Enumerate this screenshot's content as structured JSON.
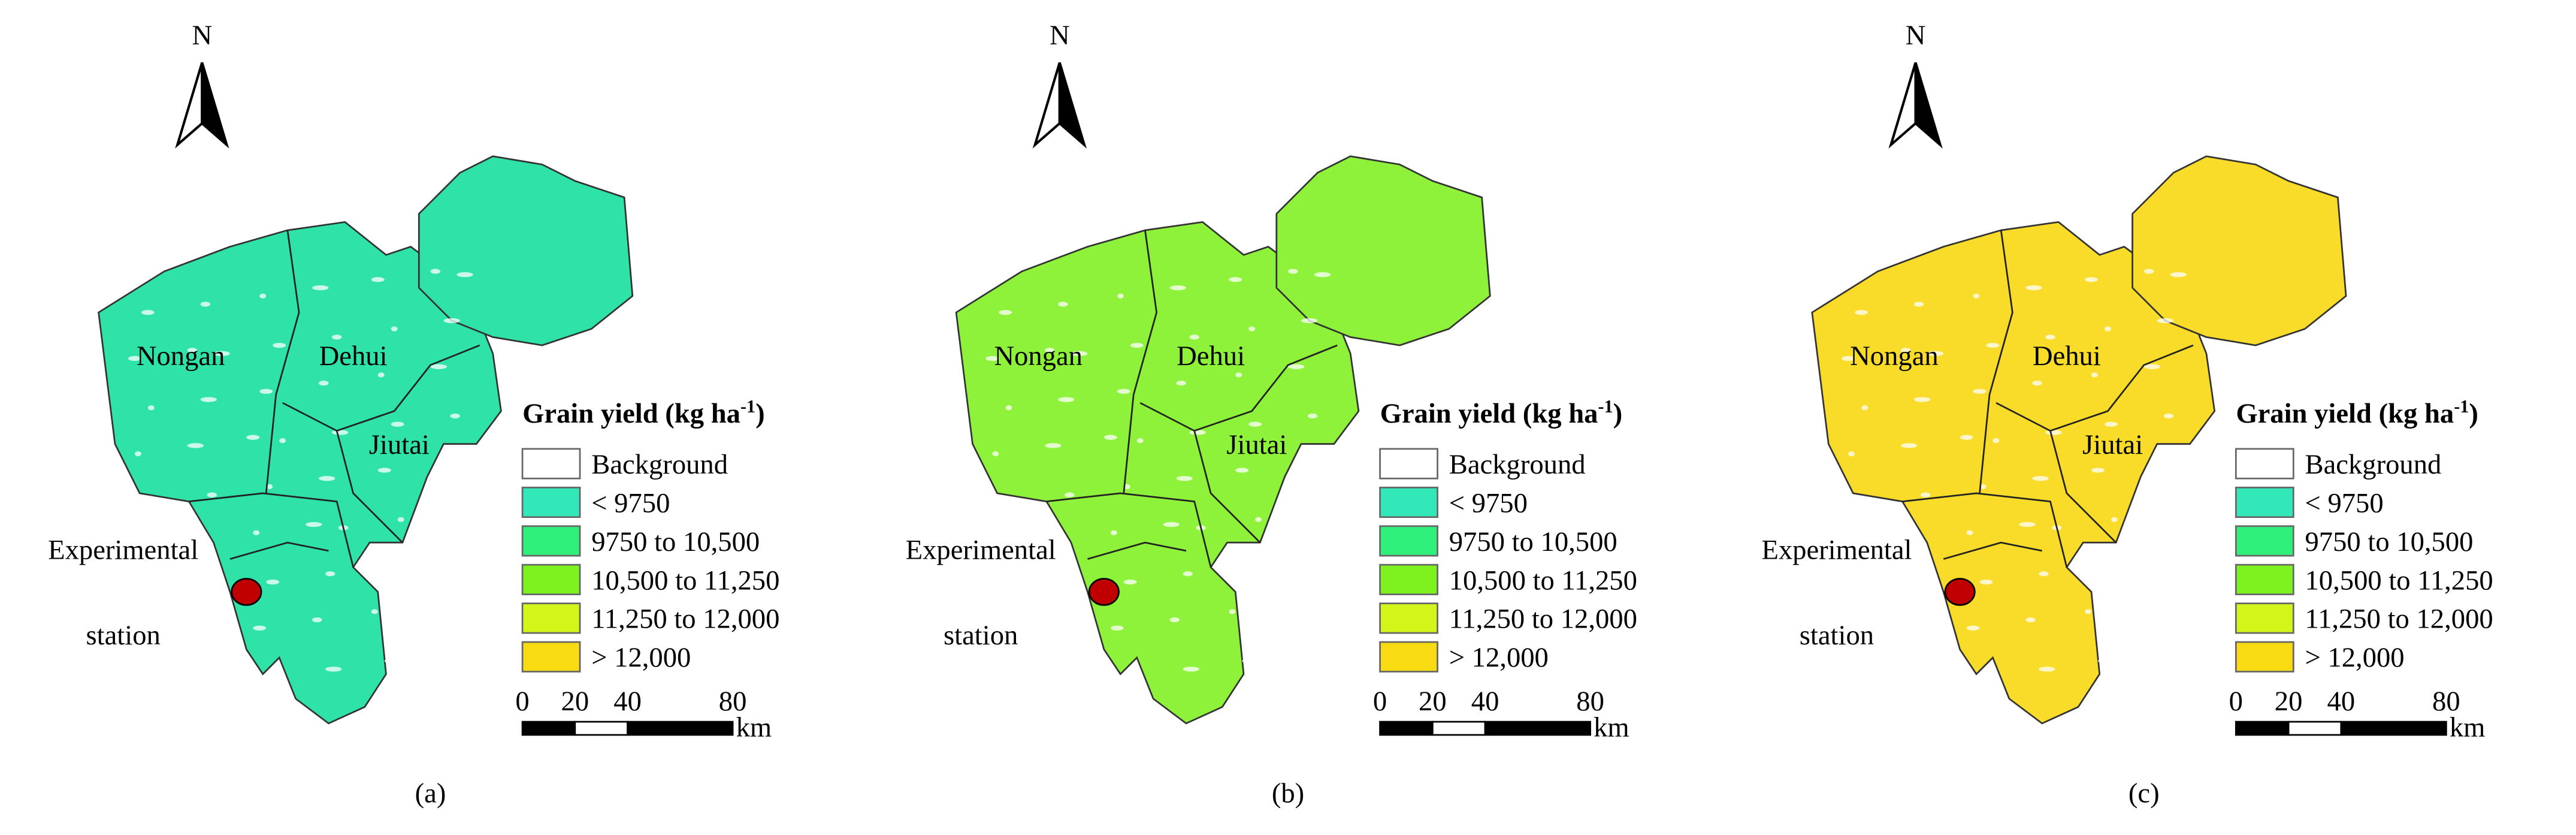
{
  "panels": [
    {
      "label": "(a)",
      "north": "N",
      "map_color": "#2fe3a8",
      "regions": [
        "Nongan",
        "Dehui",
        "Jiutai"
      ],
      "station": [
        "Experimental",
        "station"
      ],
      "legend": {
        "title": [
          "Grain yield (kg ha",
          "-1",
          ")"
        ],
        "items": [
          {
            "label": "Background",
            "color": "#ffffff"
          },
          {
            "label": "< 9750",
            "color": "#33e8b8"
          },
          {
            "label": "9750 to 10,500",
            "color": "#2ef07a"
          },
          {
            "label": "10,500 to 11,250",
            "color": "#7ef21e"
          },
          {
            "label": "11,250 to 12,000",
            "color": "#d4f51a"
          },
          {
            "label": "> 12,000",
            "color": "#f9db14"
          }
        ]
      },
      "scale": {
        "ticks": [
          0,
          20,
          40,
          80
        ],
        "unit": "km"
      }
    },
    {
      "label": "(b)",
      "north": "N",
      "map_color": "#8ef23a",
      "regions": [
        "Nongan",
        "Dehui",
        "Jiutai"
      ],
      "station": [
        "Experimental",
        "station"
      ],
      "legend": {
        "title": [
          "Grain yield (kg ha",
          "-1",
          ")"
        ],
        "items": [
          {
            "label": "Background",
            "color": "#ffffff"
          },
          {
            "label": "< 9750",
            "color": "#33e8b8"
          },
          {
            "label": "9750 to 10,500",
            "color": "#2ef07a"
          },
          {
            "label": "10,500 to 11,250",
            "color": "#7ef21e"
          },
          {
            "label": "11,250 to 12,000",
            "color": "#d4f51a"
          },
          {
            "label": "> 12,000",
            "color": "#f9db14"
          }
        ]
      },
      "scale": {
        "ticks": [
          0,
          20,
          40,
          80
        ],
        "unit": "km"
      }
    },
    {
      "label": "(c)",
      "north": "N",
      "map_color": "#f9dc2a",
      "regions": [
        "Nongan",
        "Dehui",
        "Jiutai"
      ],
      "station": [
        "Experimental",
        "station"
      ],
      "legend": {
        "title": [
          "Grain yield (kg ha",
          "-1",
          ")"
        ],
        "items": [
          {
            "label": "Background",
            "color": "#ffffff"
          },
          {
            "label": "< 9750",
            "color": "#33e8b8"
          },
          {
            "label": "9750 to 10,500",
            "color": "#2ef07a"
          },
          {
            "label": "10,500 to 11,250",
            "color": "#7ef21e"
          },
          {
            "label": "11,250 to 12,000",
            "color": "#d4f51a"
          },
          {
            "label": "> 12,000",
            "color": "#f9db14"
          }
        ]
      },
      "scale": {
        "ticks": [
          0,
          20,
          40,
          80
        ],
        "unit": "km"
      }
    }
  ]
}
